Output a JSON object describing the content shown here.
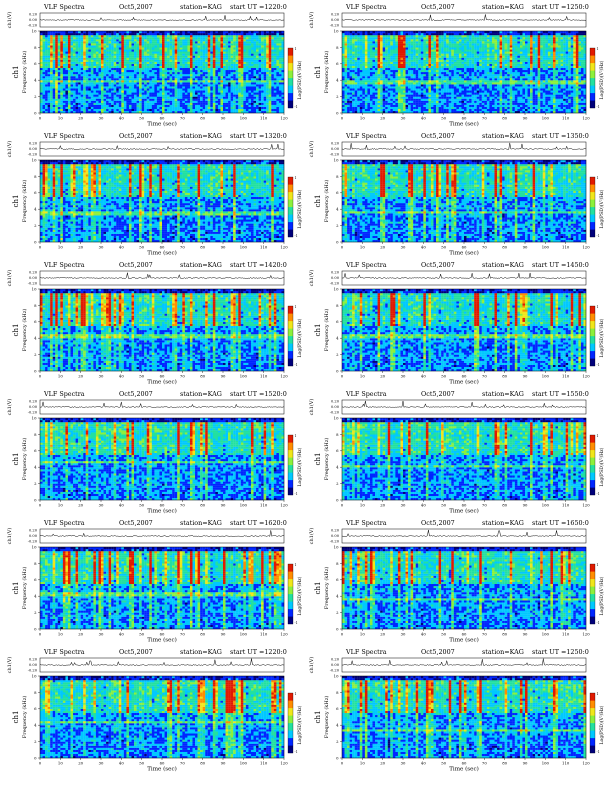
{
  "colors": {
    "scale": [
      "#00007a",
      "#0026ff",
      "#00c8ff",
      "#22e0a0",
      "#8cf03c",
      "#f0e61a",
      "#ff8c00",
      "#e01a00"
    ],
    "background": "#ffffff",
    "waveform": "#000000"
  },
  "chart_data": [
    {
      "type": "heatmap",
      "title": "VLF Spectra",
      "date": "Oct5,2007",
      "station": "station=KAG",
      "start_ut": "start  UT  =1220:0",
      "panel_label": "ch1",
      "ylabel": "Frequency  (kHz)",
      "ylabel_top": "ch1(V)",
      "top_ticks": [
        "0.20",
        "0.00",
        "-0.20"
      ],
      "xlabel": "Time  (sec)",
      "colorbar_label": "Log(PSD)(V²/Hz)",
      "xlim": [
        0,
        120
      ],
      "ylim": [
        0,
        10
      ],
      "x_ticks": [
        0,
        10,
        20,
        30,
        40,
        50,
        60,
        70,
        80,
        90,
        100,
        110,
        120
      ],
      "y_ticks": [
        0,
        2,
        4,
        6,
        8,
        10
      ],
      "clim": [
        -1,
        1
      ],
      "seed": 11
    },
    {
      "type": "heatmap",
      "title": "VLF Spectra",
      "date": "Oct5,2007",
      "station": "station=KAG",
      "start_ut": "start  UT  =1250:0",
      "panel_label": "ch1",
      "ylabel": "Frequency  (kHz)",
      "ylabel_top": "ch1(V)",
      "top_ticks": [
        "0.20",
        "0.00",
        "-0.20"
      ],
      "xlabel": "Time  (sec)",
      "colorbar_label": "Log(PSD)(V²/Hz)",
      "xlim": [
        0,
        120
      ],
      "ylim": [
        0,
        10
      ],
      "x_ticks": [
        0,
        10,
        20,
        30,
        40,
        50,
        60,
        70,
        80,
        90,
        100,
        110,
        120
      ],
      "y_ticks": [
        0,
        2,
        4,
        6,
        8,
        10
      ],
      "clim": [
        -1,
        1
      ],
      "seed": 23
    },
    {
      "type": "heatmap",
      "title": "VLF Spectra",
      "date": "Oct5,2007",
      "station": "station=KAG",
      "start_ut": "start  UT  =1320:0",
      "panel_label": "ch1",
      "ylabel": "Frequency  (kHz)",
      "ylabel_top": "ch1(V)",
      "top_ticks": [
        "0.20",
        "0.00",
        "-0.20"
      ],
      "xlabel": "Time  (sec)",
      "colorbar_label": "Log(PSD)(V²/Hz)",
      "xlim": [
        0,
        120
      ],
      "ylim": [
        0,
        10
      ],
      "x_ticks": [
        0,
        10,
        20,
        30,
        40,
        50,
        60,
        70,
        80,
        90,
        100,
        110,
        120
      ],
      "y_ticks": [
        0,
        2,
        4,
        6,
        8,
        10
      ],
      "clim": [
        -1,
        1
      ],
      "seed": 37
    },
    {
      "type": "heatmap",
      "title": "VLF Spectra",
      "date": "Oct5,2007",
      "station": "station=KAG",
      "start_ut": "start  UT  =1350:0",
      "panel_label": "ch1",
      "ylabel": "Frequency  (kHz)",
      "ylabel_top": "ch1(V)",
      "top_ticks": [
        "0.20",
        "0.00",
        "-0.20"
      ],
      "xlabel": "Time  (sec)",
      "colorbar_label": "Log(PSD)(V²/Hz)",
      "xlim": [
        0,
        120
      ],
      "ylim": [
        0,
        10
      ],
      "x_ticks": [
        0,
        10,
        20,
        30,
        40,
        50,
        60,
        70,
        80,
        90,
        100,
        110,
        120
      ],
      "y_ticks": [
        0,
        2,
        4,
        6,
        8,
        10
      ],
      "clim": [
        -1,
        1
      ],
      "seed": 41
    },
    {
      "type": "heatmap",
      "title": "VLF Spectra",
      "date": "Oct5,2007",
      "station": "station=KAG",
      "start_ut": "start  UT  =1420:0",
      "panel_label": "ch1",
      "ylabel": "Frequency  (kHz)",
      "ylabel_top": "ch1(V)",
      "top_ticks": [
        "0.20",
        "0.00",
        "-0.20"
      ],
      "xlabel": "Time  (sec)",
      "colorbar_label": "Log(PSD)(V²/Hz)",
      "xlim": [
        0,
        120
      ],
      "ylim": [
        0,
        10
      ],
      "x_ticks": [
        0,
        10,
        20,
        30,
        40,
        50,
        60,
        70,
        80,
        90,
        100,
        110,
        120
      ],
      "y_ticks": [
        0,
        2,
        4,
        6,
        8,
        10
      ],
      "clim": [
        -1,
        1
      ],
      "seed": 53
    },
    {
      "type": "heatmap",
      "title": "VLF Spectra",
      "date": "Oct5,2007",
      "station": "station=KAG",
      "start_ut": "start  UT  =1450:0",
      "panel_label": "ch1",
      "ylabel": "Frequency  (kHz)",
      "ylabel_top": "ch1(V)",
      "top_ticks": [
        "0.20",
        "0.00",
        "-0.20"
      ],
      "xlabel": "Time  (sec)",
      "colorbar_label": "Log(PSD)(V²/Hz)",
      "xlim": [
        0,
        120
      ],
      "ylim": [
        0,
        10
      ],
      "x_ticks": [
        0,
        10,
        20,
        30,
        40,
        50,
        60,
        70,
        80,
        90,
        100,
        110,
        120
      ],
      "y_ticks": [
        0,
        2,
        4,
        6,
        8,
        10
      ],
      "clim": [
        -1,
        1
      ],
      "seed": 67
    },
    {
      "type": "heatmap",
      "title": "VLF Spectra",
      "date": "Oct5,2007",
      "station": "station=KAG",
      "start_ut": "start  UT  =1520:0",
      "panel_label": "ch1",
      "ylabel": "Frequency  (kHz)",
      "ylabel_top": "ch1(V)",
      "top_ticks": [
        "0.20",
        "0.00",
        "-0.20"
      ],
      "xlabel": "Time  (sec)",
      "colorbar_label": "Log(PSD)(V²/Hz)",
      "xlim": [
        0,
        120
      ],
      "ylim": [
        0,
        10
      ],
      "x_ticks": [
        0,
        10,
        20,
        30,
        40,
        50,
        60,
        70,
        80,
        90,
        100,
        110,
        120
      ],
      "y_ticks": [
        0,
        2,
        4,
        6,
        8,
        10
      ],
      "clim": [
        -1,
        1
      ],
      "seed": 79
    },
    {
      "type": "heatmap",
      "title": "VLF Spectra",
      "date": "Oct5,2007",
      "station": "station=KAG",
      "start_ut": "start  UT  =1550:0",
      "panel_label": "ch1",
      "ylabel": "Frequency  (kHz)",
      "ylabel_top": "ch1(V)",
      "top_ticks": [
        "0.20",
        "0.00",
        "-0.20"
      ],
      "xlabel": "Time  (sec)",
      "colorbar_label": "Log(PSD)(V²/Hz)",
      "xlim": [
        0,
        120
      ],
      "ylim": [
        0,
        10
      ],
      "x_ticks": [
        0,
        10,
        20,
        30,
        40,
        50,
        60,
        70,
        80,
        90,
        100,
        110,
        120
      ],
      "y_ticks": [
        0,
        2,
        4,
        6,
        8,
        10
      ],
      "clim": [
        -1,
        1
      ],
      "seed": 83
    },
    {
      "type": "heatmap",
      "title": "VLF Spectra",
      "date": "Oct5,2007",
      "station": "station=KAG",
      "start_ut": "start  UT  =1620:0",
      "panel_label": "ch1",
      "ylabel": "Frequency  (kHz)",
      "ylabel_top": "ch1(V)",
      "top_ticks": [
        "0.20",
        "0.00",
        "-0.20"
      ],
      "xlabel": "Time  (sec)",
      "colorbar_label": "Log(PSD)(V²/Hz)",
      "xlim": [
        0,
        120
      ],
      "ylim": [
        0,
        10
      ],
      "x_ticks": [
        0,
        10,
        20,
        30,
        40,
        50,
        60,
        70,
        80,
        90,
        100,
        110,
        120
      ],
      "y_ticks": [
        0,
        2,
        4,
        6,
        8,
        10
      ],
      "clim": [
        -1,
        1
      ],
      "seed": 97
    },
    {
      "type": "heatmap",
      "title": "VLF Spectra",
      "date": "Oct5,2007",
      "station": "station=KAG",
      "start_ut": "start  UT  =1650:0",
      "panel_label": "ch1",
      "ylabel": "Frequency  (kHz)",
      "ylabel_top": "ch1(V)",
      "top_ticks": [
        "0.20",
        "0.00",
        "-0.20"
      ],
      "xlabel": "Time  (sec)",
      "colorbar_label": "Log(PSD)(V²/Hz)",
      "xlim": [
        0,
        120
      ],
      "ylim": [
        0,
        10
      ],
      "x_ticks": [
        0,
        10,
        20,
        30,
        40,
        50,
        60,
        70,
        80,
        90,
        100,
        110,
        120
      ],
      "y_ticks": [
        0,
        2,
        4,
        6,
        8,
        10
      ],
      "clim": [
        -1,
        1
      ],
      "seed": 101
    },
    {
      "type": "heatmap",
      "title": "VLF Spectra",
      "date": "Oct5,2007",
      "station": "station=KAG",
      "start_ut": "start  UT  =1220:0",
      "panel_label": "ch1",
      "ylabel": "Frequency  (kHz)",
      "ylabel_top": "ch1(V)",
      "top_ticks": [
        "0.20",
        "0.00",
        "-0.20"
      ],
      "xlabel": "Time  (sec)",
      "colorbar_label": "Log(PSD)(V²/Hz)",
      "xlim": [
        0,
        120
      ],
      "ylim": [
        0,
        10
      ],
      "x_ticks": [
        0,
        10,
        20,
        30,
        40,
        50,
        60,
        70,
        80,
        90,
        100,
        110,
        120
      ],
      "y_ticks": [
        0,
        2,
        4,
        6,
        8,
        10
      ],
      "clim": [
        -1,
        1
      ],
      "seed": 113
    },
    {
      "type": "heatmap",
      "title": "VLF Spectra",
      "date": "Oct5,2007",
      "station": "station=KAG",
      "start_ut": "start  UT  =1250:0",
      "panel_label": "ch1",
      "ylabel": "Frequency  (kHz)",
      "ylabel_top": "ch1(V)",
      "top_ticks": [
        "0.20",
        "0.00",
        "-0.20"
      ],
      "xlabel": "Time  (sec)",
      "colorbar_label": "Log(PSD)(V²/Hz)",
      "xlim": [
        0,
        120
      ],
      "ylim": [
        0,
        10
      ],
      "x_ticks": [
        0,
        10,
        20,
        30,
        40,
        50,
        60,
        70,
        80,
        90,
        100,
        110,
        120
      ],
      "y_ticks": [
        0,
        2,
        4,
        6,
        8,
        10
      ],
      "clim": [
        -1,
        1
      ],
      "seed": 127
    }
  ]
}
